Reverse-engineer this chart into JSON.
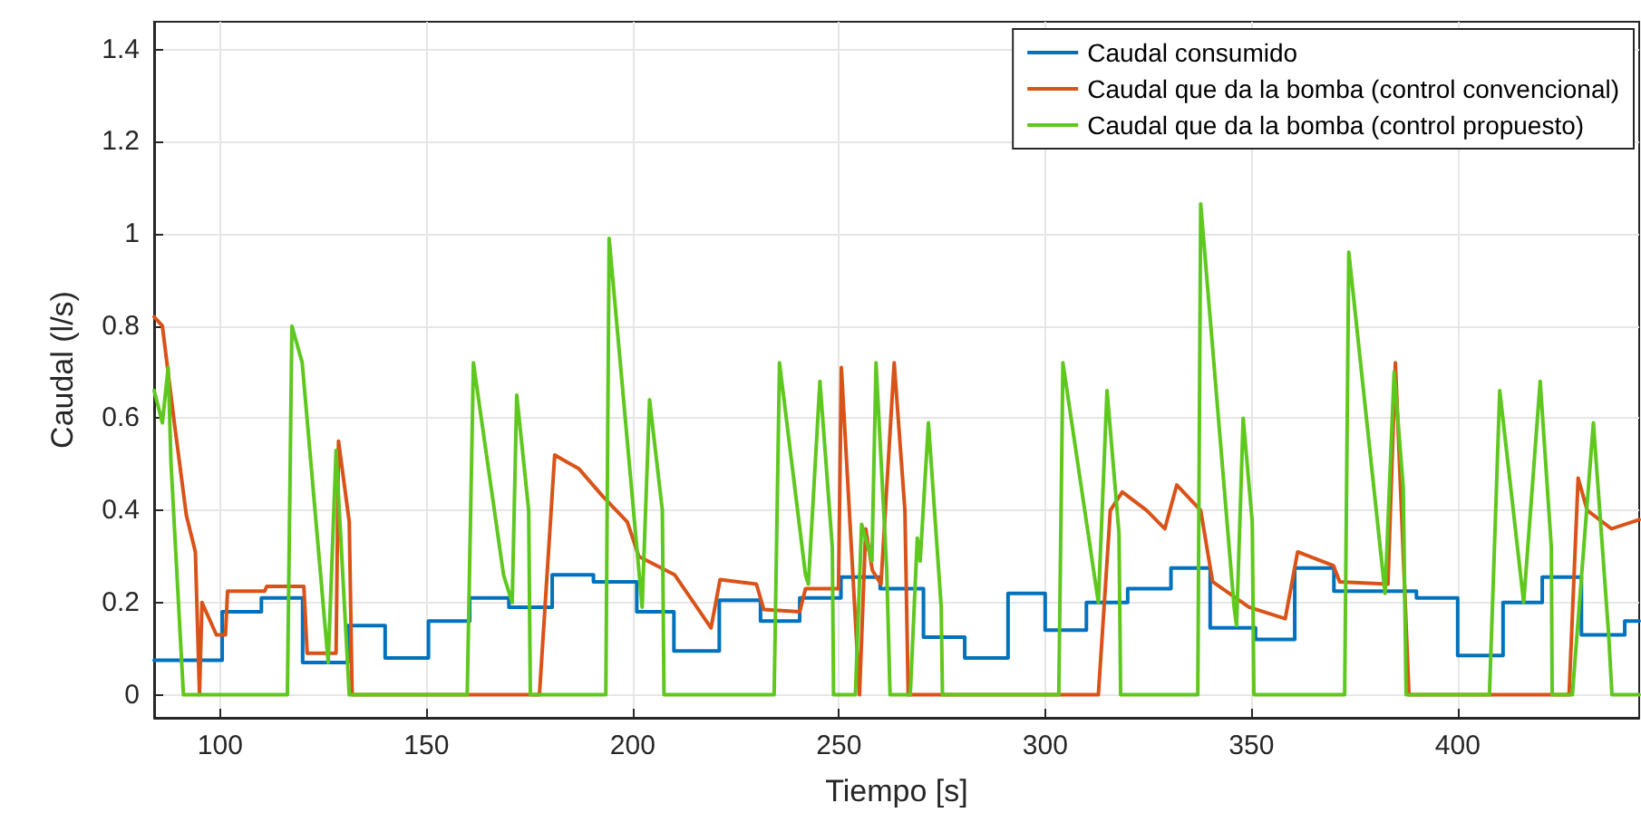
{
  "chart_data": {
    "type": "line",
    "xlabel": "Tiempo [s]",
    "ylabel": "Caudal (l/s)",
    "xlim": [
      84,
      444
    ],
    "ylim": [
      -0.05,
      1.46
    ],
    "xticks": [
      100,
      150,
      200,
      250,
      300,
      350,
      400
    ],
    "yticks": [
      0,
      0.2,
      0.4,
      0.6,
      0.8,
      1,
      1.2,
      1.4
    ],
    "grid": true,
    "legend": "top right",
    "marker": "none",
    "line_style": "solid",
    "series": [
      {
        "name": "Caudal consumido",
        "type": "step",
        "color": "#0072bd",
        "x": [
          84,
          100.5,
          110,
          120,
          131,
          140,
          150.5,
          160.5,
          170,
          180.5,
          190.5,
          201,
          210,
          221,
          231,
          240.5,
          250.5,
          260,
          270.5,
          280.5,
          291,
          300,
          310,
          320,
          330.5,
          340,
          351,
          360.5,
          370,
          390,
          400,
          411,
          420.5,
          430,
          440.5,
          444
        ],
        "values": [
          0.075,
          0.18,
          0.21,
          0.07,
          0.15,
          0.08,
          0.16,
          0.21,
          0.19,
          0.26,
          0.245,
          0.18,
          0.095,
          0.205,
          0.16,
          0.21,
          0.255,
          0.23,
          0.125,
          0.08,
          0.22,
          0.14,
          0.2,
          0.23,
          0.275,
          0.145,
          0.12,
          0.275,
          0.225,
          0.21,
          0.085,
          0.2,
          0.255,
          0.13,
          0.16,
          0.16
        ]
      },
      {
        "name": "Caudal que da la bomba (control convencional)",
        "color": "#d95319",
        "x": [
          84,
          86,
          88.9,
          91.8,
          94,
          95,
          95.6,
          99.1,
          101.3,
          101.8,
          110.8,
          111.3,
          120.3,
          121.1,
          128.1,
          128.7,
          131.3,
          132,
          177.4,
          181.1,
          187,
          192.8,
          198.7,
          201.5,
          210.2,
          219,
          221.2,
          230,
          231.8,
          240.5,
          241.9,
          249.9,
          250.6,
          255,
          256.5,
          258.1,
          260.2,
          263.4,
          266,
          266.8,
          312.9,
          315.8,
          318.7,
          324.6,
          329,
          331.9,
          337.7,
          340.6,
          349.4,
          358.2,
          361.2,
          369.9,
          371.4,
          383.1,
          384.9,
          388.2,
          427,
          429.2,
          431.4,
          437.3,
          444
        ],
        "values": [
          0.82,
          0.8,
          0.59,
          0.39,
          0.31,
          0,
          0.2,
          0.13,
          0.13,
          0.225,
          0.225,
          0.235,
          0.235,
          0.09,
          0.09,
          0.55,
          0.375,
          0,
          0,
          0.52,
          0.49,
          0.43,
          0.375,
          0.3,
          0.26,
          0.145,
          0.25,
          0.24,
          0.185,
          0.18,
          0.23,
          0.23,
          0.71,
          0,
          0.36,
          0.27,
          0.24,
          0.72,
          0.4,
          0,
          0,
          0.4,
          0.44,
          0.4,
          0.36,
          0.455,
          0.4,
          0.245,
          0.19,
          0.165,
          0.31,
          0.28,
          0.245,
          0.24,
          0.72,
          0,
          0,
          0.47,
          0.4,
          0.36,
          0.38
        ]
      },
      {
        "name": "Caudal que da la bomba (control propuesto)",
        "color": "#5fc81e",
        "x": [
          84,
          86,
          87.4,
          88.1,
          91.1,
          116.3,
          117.4,
          119.9,
          126.2,
          128.1,
          131.3,
          159.9,
          161.4,
          168.7,
          170.8,
          171.9,
          174.8,
          175.2,
          193.5,
          194.3,
          202.3,
          204.1,
          207.2,
          207.6,
          234.3,
          235.6,
          241.9,
          242.6,
          245.4,
          248.4,
          248.7,
          254,
          255.5,
          258,
          259,
          261.6,
          262.4,
          267.3,
          269,
          269.7,
          271.7,
          274.8,
          275.1,
          303.3,
          304.3,
          312.9,
          315,
          317.9,
          318.3,
          337,
          337.7,
          345.8,
          346.4,
          348,
          350.2,
          350.6,
          372.6,
          373.6,
          382.4,
          384.6,
          386.8,
          387.5,
          407.7,
          410.2,
          416,
          420,
          422.7,
          422.9,
          427.8,
          432.9,
          436.6,
          437.4,
          444
        ],
        "values": [
          0.66,
          0.59,
          0.71,
          0.5,
          0,
          0,
          0.8,
          0.72,
          0.07,
          0.53,
          0,
          0,
          0.72,
          0.26,
          0.2,
          0.65,
          0.4,
          0,
          0,
          0.99,
          0.19,
          0.64,
          0.4,
          0,
          0,
          0.72,
          0.26,
          0.24,
          0.68,
          0.32,
          0,
          0,
          0.37,
          0.29,
          0.72,
          0.27,
          0,
          0,
          0.34,
          0.29,
          0.59,
          0.19,
          0,
          0,
          0.72,
          0.2,
          0.66,
          0.35,
          0,
          0,
          1.065,
          0.19,
          0.15,
          0.6,
          0.375,
          0,
          0,
          0.96,
          0.22,
          0.7,
          0.45,
          0,
          0,
          0.66,
          0.2,
          0.68,
          0.32,
          0,
          0,
          0.59,
          0.13,
          0,
          0
        ]
      }
    ]
  }
}
